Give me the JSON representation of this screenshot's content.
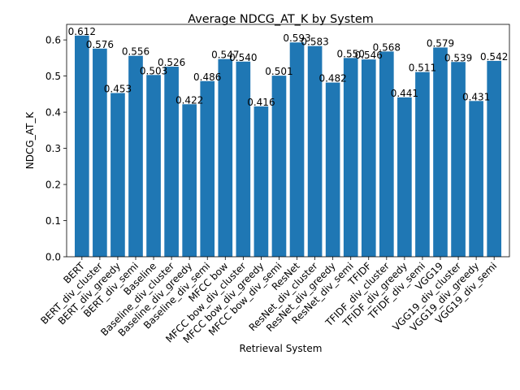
{
  "chart_data": {
    "type": "bar",
    "title": "Average NDCG_AT_K by System",
    "xlabel": "Retrieval System",
    "ylabel": "NDCG_AT_K",
    "ylim": [
      0,
      0.643
    ],
    "yticks": [
      "0.0",
      "0.1",
      "0.2",
      "0.3",
      "0.4",
      "0.5",
      "0.6"
    ],
    "grid": false,
    "legend": "none",
    "bar_color": "#1f77b4",
    "categories": [
      "BERT",
      "BERT_div_cluster",
      "BERT_div_greedy",
      "BERT_div_semi",
      "Baseline",
      "Baseline_div_cluster",
      "Baseline_div_greedy",
      "Baseline_div_semi",
      "MFCC bow",
      "MFCC bow_div_cluster",
      "MFCC bow_div_greedy",
      "MFCC bow_div_semi",
      "ResNet",
      "ResNet_div_cluster",
      "ResNet_div_greedy",
      "ResNet_div_semi",
      "TFIDF",
      "TFIDF_div_cluster",
      "TFIDF_div_greedy",
      "TFIDF_div_semi",
      "VGG19",
      "VGG19_div_cluster",
      "VGG19_div_greedy",
      "VGG19_div_semi"
    ],
    "values": [
      0.612,
      0.576,
      0.453,
      0.556,
      0.503,
      0.526,
      0.422,
      0.486,
      0.547,
      0.54,
      0.416,
      0.501,
      0.593,
      0.583,
      0.482,
      0.55,
      0.546,
      0.568,
      0.441,
      0.511,
      0.579,
      0.539,
      0.431,
      0.542
    ],
    "value_labels": [
      "0.612",
      "0.576",
      "0.453",
      "0.556",
      "0.503",
      "0.526",
      "0.422",
      "0.486",
      "0.547",
      "0.540",
      "0.416",
      "0.501",
      "0.593",
      "0.583",
      "0.482",
      "0.550",
      "0.546",
      "0.568",
      "0.441",
      "0.511",
      "0.579",
      "0.539",
      "0.431",
      "0.542"
    ]
  }
}
